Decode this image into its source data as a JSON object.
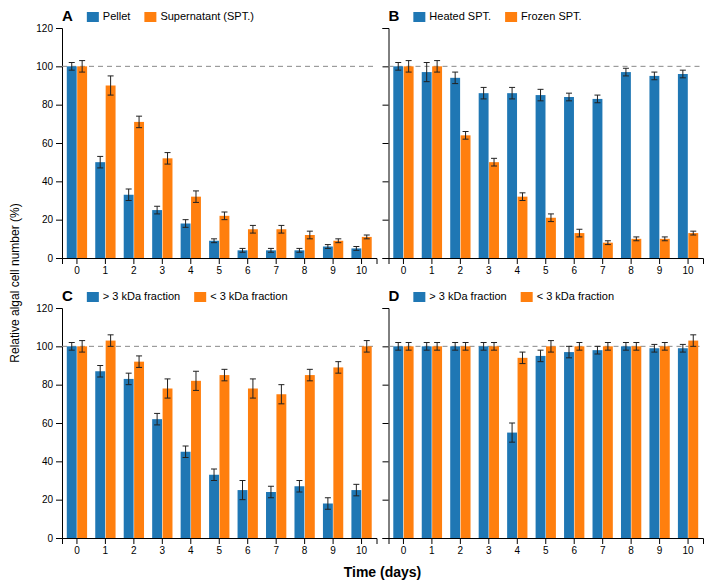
{
  "chart_data": [
    {
      "type": "bar",
      "title": "A",
      "xlabel": "Time (days)",
      "ylabel": "Relative algal cell number (%)",
      "categories": [
        "0",
        "1",
        "2",
        "3",
        "4",
        "5",
        "6",
        "7",
        "8",
        "9",
        "10"
      ],
      "series": [
        {
          "name": "Pellet",
          "values": [
            100,
            50,
            33,
            25,
            18,
            9,
            4,
            4,
            4,
            6,
            5
          ],
          "errors": [
            2,
            3,
            3,
            2,
            2,
            1,
            1,
            1,
            1,
            1,
            1
          ]
        },
        {
          "name": "Supernatant (SPT.)",
          "values": [
            100,
            90,
            71,
            52,
            32,
            22,
            15,
            15,
            12,
            9,
            11
          ],
          "errors": [
            3,
            5,
            3,
            3,
            3,
            2,
            2,
            2,
            2,
            1,
            1
          ]
        }
      ],
      "reference_y": 100,
      "ylim": [
        0,
        120
      ],
      "yticks": [
        0,
        20,
        40,
        60,
        80,
        100,
        120
      ],
      "legend": "top"
    },
    {
      "type": "bar",
      "title": "B",
      "categories": [
        "0",
        "1",
        "2",
        "3",
        "4",
        "5",
        "6",
        "7",
        "8",
        "9",
        "10"
      ],
      "series": [
        {
          "name": "Heated SPT.",
          "values": [
            100,
            97,
            94,
            86,
            86,
            85,
            84,
            83,
            97,
            95,
            96
          ],
          "errors": [
            2,
            5,
            3,
            3,
            3,
            3,
            2,
            2,
            2,
            2,
            2
          ]
        },
        {
          "name": "Frozen SPT.",
          "values": [
            100,
            100,
            64,
            50,
            32,
            21,
            13,
            8,
            10,
            10,
            13
          ],
          "errors": [
            3,
            3,
            2,
            2,
            2,
            2,
            2,
            1,
            1,
            1,
            1
          ]
        }
      ],
      "reference_y": 100,
      "ylim": [
        0,
        120
      ],
      "yticks": [
        0,
        20,
        40,
        60,
        80,
        100,
        120
      ],
      "legend": "top",
      "tick_labels": "x"
    },
    {
      "type": "bar",
      "title": "C",
      "categories": [
        "0",
        "1",
        "2",
        "3",
        "4",
        "5",
        "6",
        "7",
        "8",
        "9",
        "10"
      ],
      "series": [
        {
          "name": "> 3 kDa fraction",
          "values": [
            100,
            87,
            83,
            62,
            45,
            33,
            25,
            24,
            27,
            18,
            25
          ],
          "errors": [
            2,
            3,
            3,
            3,
            3,
            3,
            5,
            3,
            3,
            3,
            3
          ]
        },
        {
          "name": "< 3 kDa fraction",
          "values": [
            100,
            103,
            92,
            78,
            82,
            85,
            78,
            75,
            85,
            89,
            100
          ],
          "errors": [
            3,
            3,
            3,
            5,
            5,
            3,
            5,
            5,
            3,
            3,
            3
          ]
        }
      ],
      "reference_y": 100,
      "ylim": [
        0,
        120
      ],
      "yticks": [
        0,
        20,
        40,
        60,
        80,
        100,
        120
      ],
      "legend": "top"
    },
    {
      "type": "bar",
      "title": "D",
      "categories": [
        "0",
        "1",
        "2",
        "3",
        "4",
        "5",
        "6",
        "7",
        "8",
        "9",
        "10"
      ],
      "series": [
        {
          "name": "> 3 kDa fraction",
          "values": [
            100,
            100,
            100,
            100,
            55,
            95,
            97,
            98,
            100,
            99,
            99
          ],
          "errors": [
            2,
            2,
            2,
            2,
            5,
            3,
            3,
            2,
            2,
            2,
            2
          ]
        },
        {
          "name": "< 3 kDa fraction",
          "values": [
            100,
            100,
            100,
            100,
            94,
            100,
            100,
            100,
            100,
            100,
            103
          ],
          "errors": [
            2,
            2,
            2,
            2,
            3,
            3,
            2,
            2,
            2,
            2,
            3
          ]
        }
      ],
      "reference_y": 100,
      "ylim": [
        0,
        120
      ],
      "yticks": [
        0,
        20,
        40,
        60,
        80,
        100,
        120
      ],
      "legend": "top",
      "tick_labels": "x"
    }
  ]
}
